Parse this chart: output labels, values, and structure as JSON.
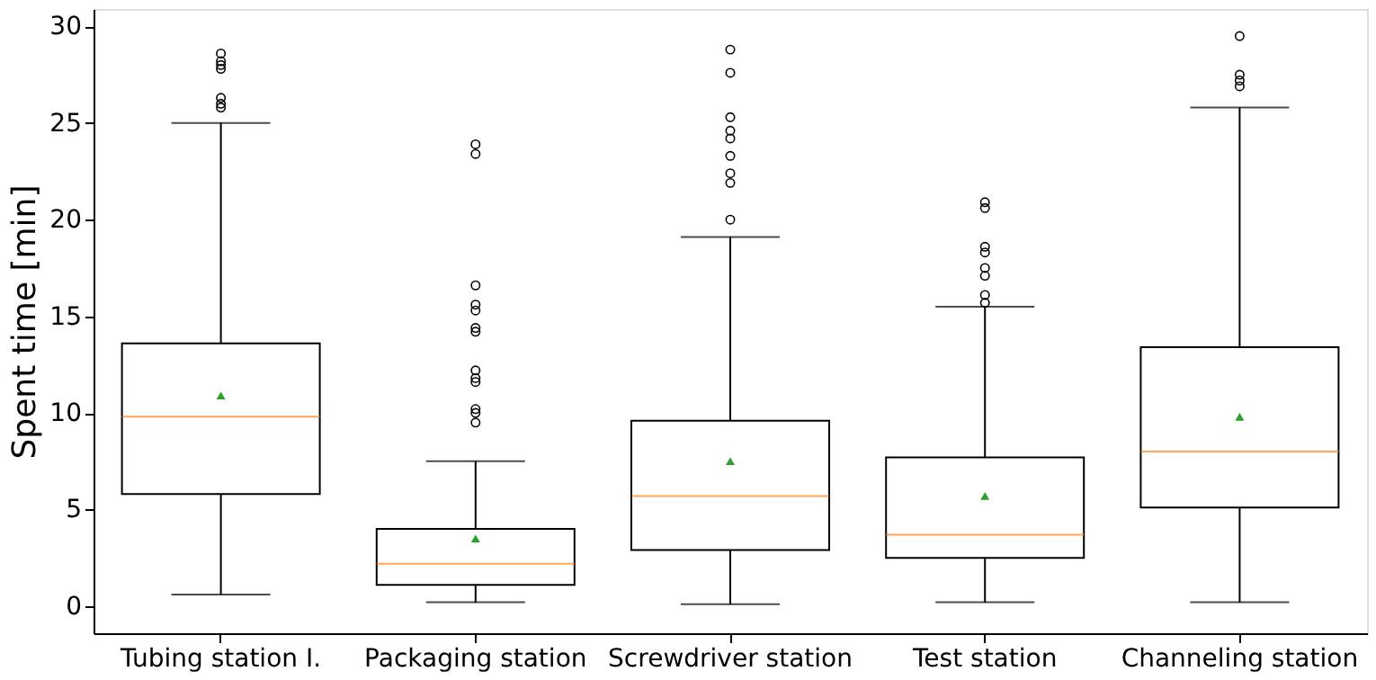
{
  "chart_data": {
    "type": "box",
    "ylabel": "Spent time [min]",
    "categories": [
      "Tubing station I.",
      "Packaging station",
      "Screwdriver station",
      "Test station",
      "Channeling station"
    ],
    "boxes": [
      {
        "low": 0.6,
        "q1": 5.8,
        "median": 9.8,
        "q3": 13.6,
        "high": 25.0,
        "mean": 10.9,
        "outliers": [
          25.8,
          26.0,
          26.3,
          27.8,
          28.0,
          28.2,
          28.6
        ]
      },
      {
        "low": 0.2,
        "q1": 1.1,
        "median": 2.2,
        "q3": 4.0,
        "high": 7.5,
        "mean": 3.5,
        "outliers": [
          9.5,
          10.0,
          10.2,
          11.6,
          11.8,
          12.2,
          14.2,
          14.4,
          15.3,
          15.6,
          16.6,
          23.4,
          23.9
        ]
      },
      {
        "low": 0.1,
        "q1": 2.9,
        "median": 5.7,
        "q3": 9.6,
        "high": 19.1,
        "mean": 7.5,
        "outliers": [
          20.0,
          21.9,
          22.4,
          23.3,
          24.2,
          24.6,
          25.3,
          27.6,
          28.8
        ]
      },
      {
        "low": 0.2,
        "q1": 2.5,
        "median": 3.7,
        "q3": 7.7,
        "high": 15.5,
        "mean": 5.7,
        "outliers": [
          15.7,
          16.1,
          17.1,
          17.5,
          18.3,
          18.6,
          20.6,
          20.9
        ]
      },
      {
        "low": 0.2,
        "q1": 5.1,
        "median": 8.0,
        "q3": 13.4,
        "high": 25.8,
        "mean": 9.8,
        "outliers": [
          26.9,
          27.2,
          27.5,
          29.5
        ]
      }
    ],
    "ylim": [
      -1.4,
      30.9
    ],
    "yticks": [
      0,
      5,
      10,
      15,
      20,
      25,
      30
    ],
    "grid": false
  }
}
